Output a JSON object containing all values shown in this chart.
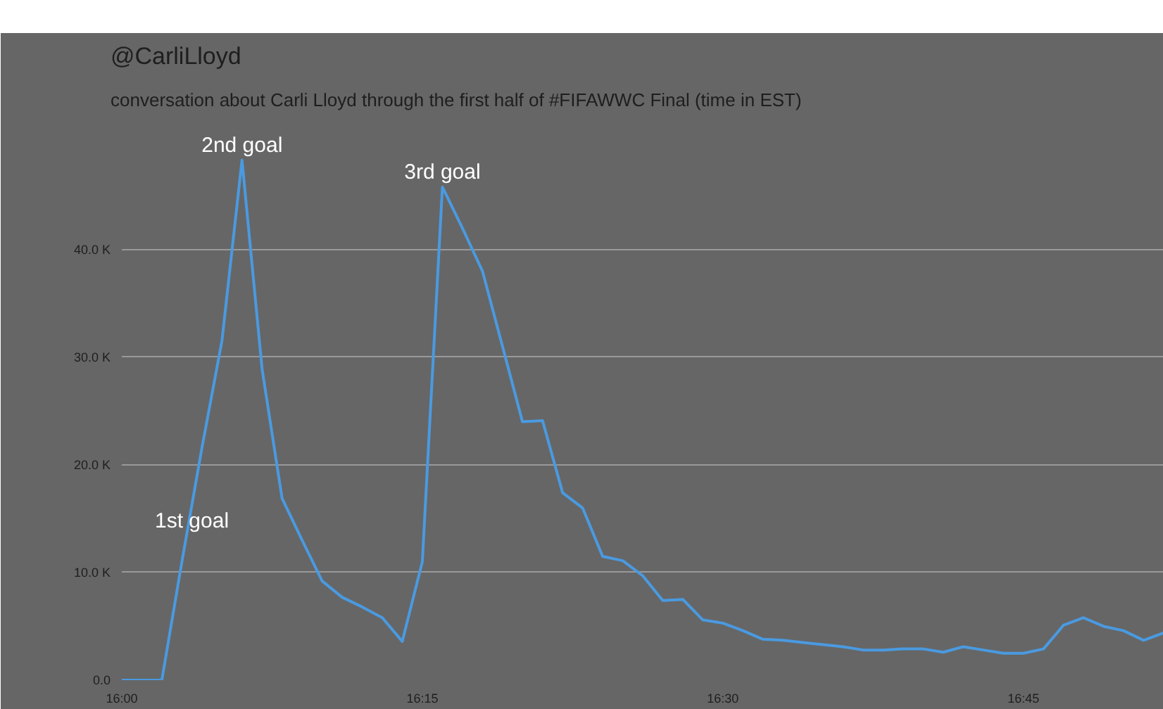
{
  "chart_data": {
    "type": "line",
    "title": "@CarliLloyd",
    "subtitle": "conversation about Carli Lloyd through the first half of #FIFAWWC Final (time in EST)",
    "x": [
      16.0,
      16.0167,
      16.0333,
      16.05,
      16.0667,
      16.0833,
      16.1,
      16.1167,
      16.1333,
      16.15,
      16.1667,
      16.1833,
      16.2,
      16.2167,
      16.2333,
      16.25,
      16.2667,
      16.2833,
      16.3,
      16.3167,
      16.3333,
      16.35,
      16.3667,
      16.3833,
      16.4,
      16.4167,
      16.4333,
      16.45,
      16.4667,
      16.4833,
      16.5,
      16.5167,
      16.5333,
      16.55,
      16.5667,
      16.5833,
      16.6,
      16.6167,
      16.6333,
      16.65,
      16.6667,
      16.6833,
      16.7,
      16.7167,
      16.7333,
      16.75,
      16.7667,
      16.7833,
      16.8,
      16.8167,
      16.8333,
      16.85,
      16.8667
    ],
    "series": [
      {
        "color": "#4a9ae0",
        "values": [
          0,
          0,
          0,
          11000,
          21600,
          31500,
          48300,
          28900,
          16900,
          13000,
          9200,
          7700,
          6800,
          5800,
          3600,
          11000,
          45800,
          42000,
          38000,
          31000,
          24000,
          24100,
          17400,
          16000,
          11500,
          11100,
          9700,
          7400,
          7500,
          5600,
          5300,
          4600,
          3800,
          3700,
          3500,
          3300,
          3100,
          2800,
          2800,
          2900,
          2900,
          2600,
          3100,
          2800,
          2500,
          2500,
          2900,
          5100,
          5800,
          5000,
          4600,
          3700,
          4400
        ]
      }
    ],
    "xlim": [
      16.0,
      16.8667
    ],
    "ylim": [
      0,
      52000
    ],
    "xticks": [
      {
        "value": 16.0,
        "label": "16:00"
      },
      {
        "value": 16.25,
        "label": "16:15"
      },
      {
        "value": 16.5,
        "label": "16:30"
      },
      {
        "value": 16.75,
        "label": "16:45"
      }
    ],
    "yticks": [
      {
        "value": 0,
        "label": "0.0"
      },
      {
        "value": 10000,
        "label": "10.0 K"
      },
      {
        "value": 20000,
        "label": "20.0 K"
      },
      {
        "value": 30000,
        "label": "30.0 K"
      },
      {
        "value": 40000,
        "label": "40.0 K"
      }
    ],
    "annotations": [
      {
        "text": "1st goal",
        "x": 16.0583,
        "y": 13400
      },
      {
        "text": "2nd goal",
        "x": 16.1,
        "y": 48300
      },
      {
        "text": "3rd goal",
        "x": 16.2667,
        "y": 45800
      }
    ],
    "grid": "y",
    "marker": "none",
    "line_style": "solid"
  }
}
